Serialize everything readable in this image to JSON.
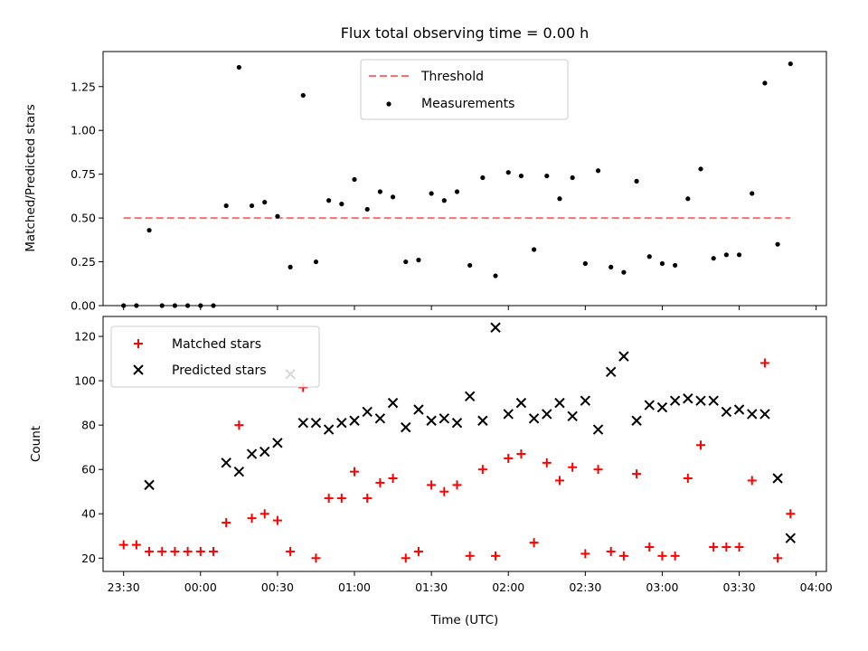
{
  "chart_data": [
    {
      "type": "scatter",
      "title": "Flux total observing time = 0.00 h",
      "xlabel": "",
      "ylabel": "Matched/Predicted stars",
      "ylim": [
        0,
        1.45
      ],
      "xlim": [
        "23:22",
        "04:04"
      ],
      "yticks": [
        "0.00",
        "0.25",
        "0.50",
        "0.75",
        "1.00",
        "1.25"
      ],
      "legend_position": "upper-center",
      "threshold": {
        "name": "Threshold",
        "value": 0.5,
        "x_from": "23:30",
        "x_to": "03:50",
        "color": "#ff6f6f"
      },
      "series": [
        {
          "name": "Measurements",
          "color": "#000000",
          "marker": "dot",
          "x": [
            "23:30",
            "23:35",
            "23:40",
            "23:45",
            "23:50",
            "23:55",
            "00:00",
            "00:05",
            "00:10",
            "00:15",
            "00:20",
            "00:25",
            "00:30",
            "00:35",
            "00:40",
            "00:45",
            "00:50",
            "00:55",
            "01:00",
            "01:05",
            "01:10",
            "01:15",
            "01:20",
            "01:25",
            "01:30",
            "01:35",
            "01:40",
            "01:45",
            "01:50",
            "01:55",
            "02:00",
            "02:05",
            "02:10",
            "02:15",
            "02:20",
            "02:25",
            "02:30",
            "02:35",
            "02:40",
            "02:45",
            "02:50",
            "02:55",
            "03:00",
            "03:05",
            "03:10",
            "03:15",
            "03:20",
            "03:25",
            "03:30",
            "03:35",
            "03:40",
            "03:45",
            "03:50"
          ],
          "y": [
            0.0,
            0.0,
            0.43,
            0.0,
            0.0,
            0.0,
            0.0,
            0.0,
            0.57,
            1.36,
            0.57,
            0.59,
            0.51,
            0.22,
            1.2,
            0.25,
            0.6,
            0.58,
            0.72,
            0.55,
            0.65,
            0.62,
            0.25,
            0.26,
            0.64,
            0.6,
            0.65,
            0.23,
            0.73,
            0.17,
            0.76,
            0.74,
            0.32,
            0.74,
            0.61,
            0.73,
            0.24,
            0.77,
            0.22,
            0.19,
            0.71,
            0.28,
            0.24,
            0.23,
            0.61,
            0.78,
            0.27,
            0.29,
            0.29,
            0.64,
            1.27,
            0.35,
            1.38
          ]
        }
      ]
    },
    {
      "type": "scatter",
      "title": "",
      "xlabel": "Time (UTC)",
      "ylabel": "Count",
      "ylim": [
        14,
        129
      ],
      "xlim": [
        "23:22",
        "04:04"
      ],
      "yticks": [
        "20",
        "40",
        "60",
        "80",
        "100",
        "120"
      ],
      "xticks": [
        "23:30",
        "00:00",
        "00:30",
        "01:00",
        "01:30",
        "02:00",
        "02:30",
        "03:00",
        "03:30",
        "04:00"
      ],
      "legend_position": "upper-left",
      "series": [
        {
          "name": "Matched stars",
          "color": "#ff0000",
          "marker": "plus",
          "x": [
            "23:30",
            "23:35",
            "23:40",
            "23:45",
            "23:50",
            "23:55",
            "00:00",
            "00:05",
            "00:10",
            "00:15",
            "00:20",
            "00:25",
            "00:30",
            "00:35",
            "00:40",
            "00:45",
            "00:50",
            "00:55",
            "01:00",
            "01:05",
            "01:10",
            "01:15",
            "01:20",
            "01:25",
            "01:30",
            "01:35",
            "01:40",
            "01:45",
            "01:50",
            "01:55",
            "02:00",
            "02:05",
            "02:10",
            "02:15",
            "02:20",
            "02:25",
            "02:30",
            "02:35",
            "02:40",
            "02:45",
            "02:50",
            "02:55",
            "03:00",
            "03:05",
            "03:10",
            "03:15",
            "03:20",
            "03:25",
            "03:30",
            "03:35",
            "03:40",
            "03:45",
            "03:50"
          ],
          "y": [
            26,
            26,
            23,
            23,
            23,
            23,
            23,
            23,
            36,
            80,
            38,
            40,
            37,
            23,
            97,
            20,
            47,
            47,
            59,
            47,
            54,
            56,
            20,
            23,
            53,
            50,
            53,
            21,
            60,
            21,
            65,
            67,
            27,
            63,
            55,
            61,
            22,
            60,
            23,
            21,
            58,
            25,
            21,
            21,
            56,
            71,
            25,
            25,
            25,
            55,
            108,
            20,
            40
          ]
        },
        {
          "name": "Predicted stars",
          "color": "#000000",
          "marker": "x",
          "x": [
            "23:40",
            "00:10",
            "00:15",
            "00:20",
            "00:25",
            "00:30",
            "00:35",
            "00:40",
            "00:45",
            "00:50",
            "00:55",
            "01:00",
            "01:05",
            "01:10",
            "01:15",
            "01:20",
            "01:25",
            "01:30",
            "01:35",
            "01:40",
            "01:45",
            "01:50",
            "01:55",
            "02:00",
            "02:05",
            "02:10",
            "02:15",
            "02:20",
            "02:25",
            "02:30",
            "02:35",
            "02:40",
            "02:45",
            "02:50",
            "02:55",
            "03:00",
            "03:05",
            "03:10",
            "03:15",
            "03:20",
            "03:25",
            "03:30",
            "03:35",
            "03:40",
            "03:45",
            "03:50"
          ],
          "y": [
            53,
            63,
            59,
            67,
            68,
            72,
            103,
            81,
            81,
            78,
            81,
            82,
            86,
            83,
            90,
            79,
            87,
            82,
            83,
            81,
            93,
            82,
            124,
            85,
            90,
            83,
            85,
            90,
            84,
            91,
            78,
            104,
            111,
            82,
            89,
            88,
            91,
            92,
            91,
            91,
            86,
            87,
            85,
            85,
            56,
            29
          ]
        }
      ]
    }
  ]
}
